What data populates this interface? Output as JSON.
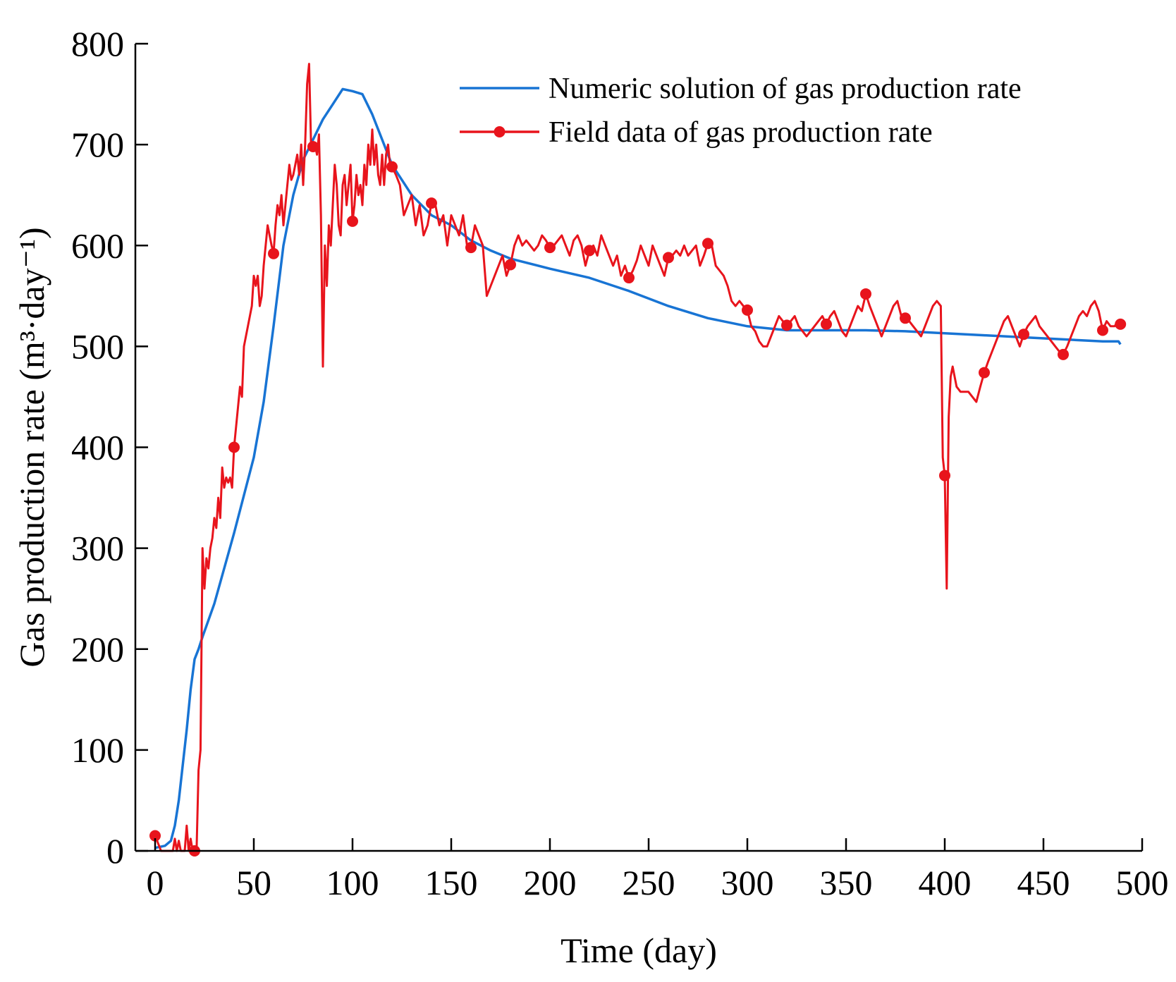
{
  "chart_data": {
    "type": "line",
    "title": "",
    "xlabel": "Time (day)",
    "ylabel": "Gas production rate (m³·day⁻¹)",
    "xlim": [
      -10,
      500
    ],
    "ylim": [
      0,
      800
    ],
    "xticks": [
      0,
      50,
      100,
      150,
      200,
      250,
      300,
      350,
      400,
      450,
      500
    ],
    "yticks": [
      0,
      100,
      200,
      300,
      400,
      500,
      600,
      700,
      800
    ],
    "grid": false,
    "legend_position": "top-right",
    "series": [
      {
        "name": "Numeric solution of gas production rate",
        "color": "#1874d4",
        "marker": "none",
        "x": [
          0,
          5,
          8,
          10,
          12,
          14,
          16,
          18,
          20,
          22,
          24,
          30,
          40,
          50,
          55,
          60,
          65,
          70,
          75,
          80,
          85,
          90,
          95,
          100,
          105,
          110,
          115,
          120,
          125,
          130,
          140,
          150,
          160,
          170,
          180,
          200,
          220,
          240,
          260,
          280,
          300,
          320,
          340,
          360,
          380,
          400,
          420,
          440,
          460,
          480,
          488,
          489
        ],
        "y": [
          3,
          5,
          10,
          25,
          50,
          85,
          120,
          160,
          190,
          200,
          212,
          245,
          315,
          390,
          445,
          520,
          600,
          650,
          685,
          705,
          725,
          740,
          755,
          753,
          750,
          730,
          705,
          680,
          665,
          650,
          630,
          620,
          605,
          595,
          587,
          577,
          568,
          555,
          540,
          528,
          520,
          516,
          516,
          516,
          515,
          513,
          511,
          509,
          507,
          505,
          505,
          502
        ]
      },
      {
        "name": "Field data of gas production rate",
        "color": "#e8141c",
        "marker": "circle",
        "marker_every": 20,
        "x": [
          0,
          1,
          2,
          3,
          4,
          5,
          6,
          7,
          8,
          9,
          10,
          11,
          12,
          13,
          14,
          15,
          16,
          17,
          18,
          19,
          20,
          21,
          22,
          23,
          24,
          25,
          26,
          27,
          28,
          29,
          30,
          31,
          32,
          33,
          34,
          35,
          36,
          37,
          38,
          39,
          40,
          41,
          42,
          43,
          44,
          45,
          46,
          47,
          48,
          49,
          50,
          51,
          52,
          53,
          54,
          55,
          56,
          57,
          58,
          59,
          60,
          61,
          62,
          63,
          64,
          65,
          66,
          67,
          68,
          69,
          70,
          71,
          72,
          73,
          74,
          75,
          76,
          77,
          78,
          79,
          80,
          81,
          82,
          83,
          84,
          85,
          86,
          87,
          88,
          89,
          90,
          91,
          92,
          93,
          94,
          95,
          96,
          97,
          98,
          99,
          100,
          101,
          102,
          103,
          104,
          105,
          106,
          107,
          108,
          109,
          110,
          111,
          112,
          113,
          114,
          115,
          116,
          117,
          118,
          119,
          120,
          122,
          124,
          126,
          128,
          130,
          132,
          134,
          136,
          138,
          140,
          142,
          144,
          146,
          148,
          150,
          152,
          154,
          156,
          158,
          160,
          162,
          164,
          166,
          168,
          170,
          172,
          174,
          176,
          178,
          180,
          182,
          184,
          186,
          188,
          190,
          192,
          194,
          196,
          198,
          200,
          202,
          204,
          206,
          208,
          210,
          212,
          214,
          216,
          218,
          220,
          222,
          224,
          226,
          228,
          230,
          232,
          234,
          236,
          238,
          240,
          242,
          244,
          246,
          248,
          250,
          252,
          254,
          256,
          258,
          260,
          262,
          264,
          266,
          268,
          270,
          272,
          274,
          276,
          278,
          280,
          282,
          284,
          286,
          288,
          290,
          292,
          294,
          296,
          298,
          300,
          302,
          304,
          306,
          308,
          310,
          312,
          314,
          316,
          318,
          320,
          322,
          324,
          326,
          328,
          330,
          332,
          334,
          336,
          338,
          340,
          342,
          344,
          346,
          348,
          350,
          352,
          354,
          356,
          358,
          360,
          362,
          364,
          366,
          368,
          370,
          372,
          374,
          376,
          378,
          380,
          382,
          384,
          386,
          388,
          390,
          392,
          394,
          396,
          398,
          399,
          400,
          401,
          402,
          403,
          404,
          406,
          408,
          410,
          412,
          414,
          416,
          418,
          420,
          422,
          424,
          426,
          428,
          430,
          432,
          434,
          436,
          438,
          440,
          442,
          444,
          446,
          448,
          450,
          452,
          454,
          456,
          458,
          460,
          462,
          464,
          466,
          468,
          470,
          472,
          474,
          476,
          478,
          480,
          482,
          484,
          486,
          488,
          489
        ],
        "y": [
          15,
          10,
          5,
          0,
          0,
          0,
          0,
          0,
          0,
          0,
          12,
          0,
          10,
          0,
          0,
          0,
          25,
          0,
          12,
          0,
          0,
          0,
          80,
          100,
          300,
          260,
          290,
          280,
          300,
          310,
          330,
          320,
          350,
          330,
          380,
          360,
          370,
          365,
          370,
          360,
          400,
          420,
          440,
          460,
          450,
          500,
          510,
          520,
          530,
          540,
          570,
          560,
          570,
          540,
          550,
          580,
          600,
          620,
          610,
          600,
          592,
          620,
          640,
          630,
          650,
          620,
          640,
          660,
          680,
          665,
          670,
          680,
          690,
          670,
          700,
          660,
          700,
          760,
          780,
          700,
          698,
          700,
          690,
          710,
          630,
          480,
          600,
          560,
          620,
          600,
          640,
          680,
          660,
          620,
          610,
          660,
          670,
          640,
          660,
          680,
          624,
          640,
          670,
          650,
          660,
          640,
          680,
          660,
          700,
          680,
          715,
          680,
          700,
          670,
          660,
          690,
          660,
          690,
          700,
          680,
          678,
          670,
          660,
          630,
          640,
          650,
          620,
          640,
          610,
          620,
          642,
          640,
          620,
          630,
          600,
          630,
          620,
          610,
          630,
          600,
          598,
          620,
          610,
          600,
          550,
          560,
          570,
          580,
          590,
          570,
          581,
          600,
          610,
          600,
          605,
          600,
          595,
          600,
          610,
          605,
          598,
          600,
          605,
          610,
          600,
          590,
          605,
          610,
          600,
          580,
          595,
          600,
          590,
          610,
          600,
          590,
          580,
          590,
          570,
          580,
          568,
          575,
          585,
          600,
          590,
          580,
          600,
          590,
          580,
          570,
          588,
          590,
          595,
          590,
          600,
          590,
          595,
          600,
          580,
          590,
          602,
          600,
          580,
          575,
          570,
          560,
          545,
          540,
          545,
          540,
          536,
          520,
          515,
          505,
          500,
          500,
          510,
          520,
          530,
          525,
          521,
          525,
          530,
          520,
          515,
          510,
          515,
          520,
          525,
          530,
          522,
          530,
          535,
          525,
          515,
          510,
          520,
          530,
          540,
          535,
          552,
          540,
          530,
          520,
          510,
          520,
          530,
          540,
          545,
          530,
          528,
          525,
          520,
          515,
          510,
          520,
          530,
          540,
          545,
          540,
          390,
          372,
          260,
          430,
          470,
          480,
          460,
          455,
          455,
          455,
          450,
          445,
          460,
          474,
          485,
          495,
          505,
          515,
          525,
          530,
          520,
          510,
          500,
          512,
          520,
          525,
          530,
          520,
          515,
          510,
          505,
          500,
          495,
          492,
          500,
          510,
          520,
          530,
          535,
          530,
          540,
          545,
          535,
          516,
          525,
          520,
          520,
          525,
          522
        ]
      }
    ]
  }
}
